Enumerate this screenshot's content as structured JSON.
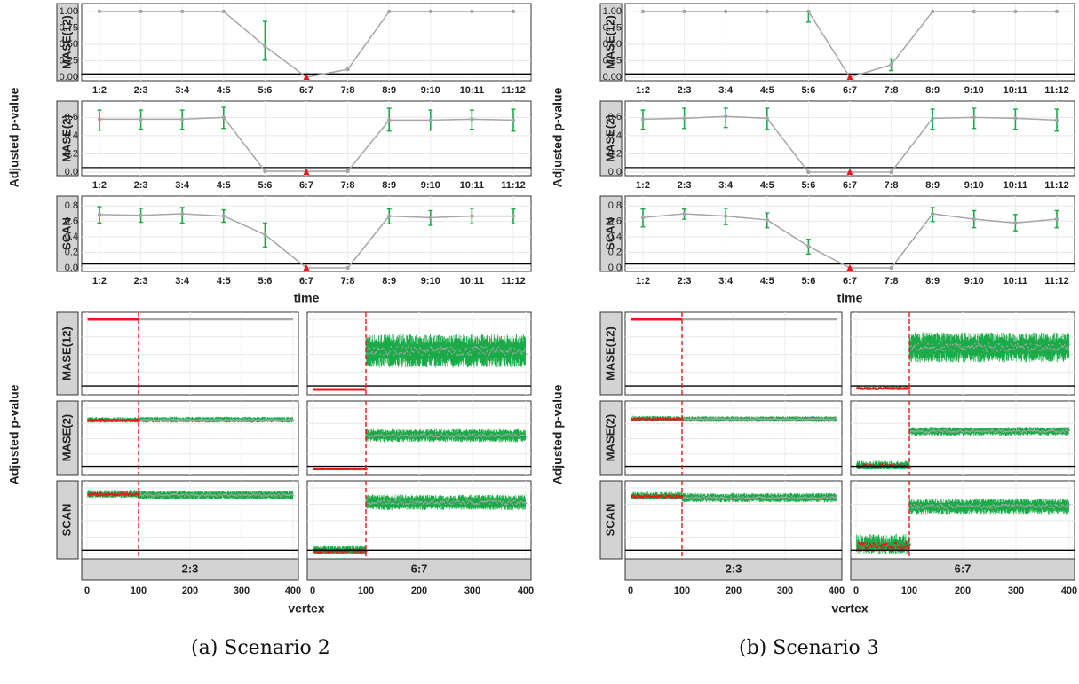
{
  "captions": {
    "a": "(a) Scenario 2",
    "b": "(b) Scenario 3"
  },
  "labels": {
    "ylabel": "Adjusted p-value",
    "xlabel_time": "time",
    "xlabel_vertex": "vertex",
    "method_strips": [
      "MASE(12)",
      "MASE(2)",
      "SCAN"
    ],
    "pair_strips": [
      "2:3",
      "6:7"
    ]
  },
  "colors": {
    "line": "#a6a6a6",
    "errorbar": "#1aab48",
    "marker": "#e8171a",
    "threshold": "#000000",
    "strip": "#d3d3d3"
  },
  "chart_data": [
    {
      "type": "line",
      "panel": "a-top",
      "xlabel": "time",
      "ylabel": "Adjusted p-value",
      "categories": [
        "1:2",
        "2:3",
        "3:4",
        "4:5",
        "5:6",
        "6:7",
        "7:8",
        "8:9",
        "9:10",
        "10:11",
        "11:12"
      ],
      "threshold": 0.05,
      "highlight_category": "6:7",
      "facets": [
        {
          "name": "MASE(12)",
          "yticks": [
            0,
            0.25,
            0.5,
            0.75,
            1
          ],
          "ylim": [
            0,
            1.04
          ],
          "values": [
            1,
            1,
            1,
            1,
            0.47,
            0,
            0.12,
            1,
            1,
            1,
            1
          ],
          "lo": [
            1,
            1,
            1,
            1,
            0.26,
            0,
            0.12,
            1,
            1,
            1,
            1
          ],
          "hi": [
            1,
            1,
            1,
            1,
            0.85,
            0,
            0.12,
            1,
            1,
            1,
            1
          ]
        },
        {
          "name": "MASE(2)",
          "yticks": [
            0,
            0.2,
            0.4,
            0.6
          ],
          "ylim": [
            0,
            0.72
          ],
          "values": [
            0.58,
            0.58,
            0.58,
            0.6,
            0.01,
            0.01,
            0.01,
            0.57,
            0.57,
            0.58,
            0.57
          ],
          "lo": [
            0.46,
            0.47,
            0.47,
            0.48,
            0.01,
            0.01,
            0.01,
            0.45,
            0.46,
            0.47,
            0.45
          ],
          "hi": [
            0.68,
            0.68,
            0.68,
            0.71,
            0.01,
            0.01,
            0.01,
            0.7,
            0.68,
            0.68,
            0.69
          ]
        },
        {
          "name": "SCAN",
          "yticks": [
            0,
            0.2,
            0.4,
            0.6,
            0.8
          ],
          "ylim": [
            0,
            0.86
          ],
          "values": [
            0.69,
            0.68,
            0.7,
            0.67,
            0.43,
            0.0,
            0.0,
            0.67,
            0.65,
            0.67,
            0.67
          ],
          "lo": [
            0.58,
            0.59,
            0.58,
            0.59,
            0.27,
            0.0,
            0.0,
            0.57,
            0.55,
            0.57,
            0.57
          ],
          "hi": [
            0.79,
            0.77,
            0.78,
            0.75,
            0.58,
            0.0,
            0.0,
            0.76,
            0.74,
            0.77,
            0.76
          ]
        }
      ]
    },
    {
      "type": "line",
      "panel": "b-top",
      "xlabel": "time",
      "ylabel": "Adjusted p-value",
      "categories": [
        "1:2",
        "2:3",
        "3:4",
        "4:5",
        "5:6",
        "6:7",
        "7:8",
        "8:9",
        "9:10",
        "10:11",
        "11:12"
      ],
      "threshold": 0.05,
      "highlight_category": "6:7",
      "facets": [
        {
          "name": "MASE(12)",
          "yticks": [
            0,
            0.25,
            0.5,
            0.75,
            1
          ],
          "ylim": [
            0,
            1.04
          ],
          "values": [
            1,
            1,
            1,
            1,
            1,
            0,
            0.19,
            1,
            1,
            1,
            1
          ],
          "lo": [
            1,
            1,
            1,
            1,
            0.84,
            0,
            0.1,
            1,
            1,
            1,
            1
          ],
          "hi": [
            1,
            1,
            1,
            1,
            1,
            0,
            0.28,
            1,
            1,
            1,
            1
          ]
        },
        {
          "name": "MASE(2)",
          "yticks": [
            0,
            0.2,
            0.4,
            0.6
          ],
          "ylim": [
            0,
            0.72
          ],
          "values": [
            0.58,
            0.59,
            0.61,
            0.59,
            0.0,
            0.0,
            0.0,
            0.59,
            0.6,
            0.59,
            0.57
          ],
          "lo": [
            0.47,
            0.48,
            0.49,
            0.47,
            0.0,
            0.0,
            0.0,
            0.47,
            0.48,
            0.47,
            0.45
          ],
          "hi": [
            0.68,
            0.7,
            0.7,
            0.7,
            0.0,
            0.0,
            0.0,
            0.69,
            0.7,
            0.69,
            0.69
          ]
        },
        {
          "name": "SCAN",
          "yticks": [
            0,
            0.2,
            0.4,
            0.6,
            0.8
          ],
          "ylim": [
            0,
            0.86
          ],
          "values": [
            0.65,
            0.7,
            0.67,
            0.62,
            0.28,
            0.0,
            0.0,
            0.7,
            0.63,
            0.58,
            0.63
          ],
          "lo": [
            0.53,
            0.63,
            0.56,
            0.52,
            0.18,
            0.0,
            0.0,
            0.6,
            0.52,
            0.48,
            0.52
          ],
          "hi": [
            0.76,
            0.76,
            0.77,
            0.71,
            0.37,
            0.0,
            0.0,
            0.78,
            0.74,
            0.69,
            0.74
          ]
        }
      ]
    },
    {
      "type": "scatter",
      "panel": "a-bottom",
      "xlabel": "vertex",
      "ylabel": "Adjusted p-value",
      "xlim": [
        0,
        400
      ],
      "xticks": [
        0,
        100,
        200,
        300,
        400
      ],
      "ylim": [
        0,
        1.0
      ],
      "yticks": [
        0,
        0.25,
        0.5,
        0.75,
        1
      ],
      "threshold": 0.05,
      "changed_vertices": [
        1,
        100
      ],
      "facets": [
        {
          "row": "MASE(12)",
          "col": "2:3",
          "before": {
            "mean": 1.0,
            "spread": 0.0
          },
          "after": {
            "mean": 1.0,
            "spread": 0.0
          }
        },
        {
          "row": "MASE(12)",
          "col": "6:7",
          "before": {
            "mean": 0.0,
            "spread": 0.0
          },
          "after": {
            "mean": 0.55,
            "spread": 0.2
          }
        },
        {
          "row": "MASE(2)",
          "col": "2:3",
          "before": {
            "mean": 0.8,
            "spread": 0.03
          },
          "after": {
            "mean": 0.81,
            "spread": 0.04
          }
        },
        {
          "row": "MASE(2)",
          "col": "6:7",
          "before": {
            "mean": 0.0,
            "spread": 0.01
          },
          "after": {
            "mean": 0.55,
            "spread": 0.09
          }
        },
        {
          "row": "SCAN",
          "col": "2:3",
          "before": {
            "mean": 0.9,
            "spread": 0.04
          },
          "after": {
            "mean": 0.89,
            "spread": 0.06
          }
        },
        {
          "row": "SCAN",
          "col": "6:7",
          "before": {
            "mean": 0.04,
            "spread": 0.05
          },
          "after": {
            "mean": 0.78,
            "spread": 0.1
          }
        }
      ]
    },
    {
      "type": "scatter",
      "panel": "b-bottom",
      "xlabel": "vertex",
      "ylabel": "Adjusted p-value",
      "xlim": [
        0,
        400
      ],
      "xticks": [
        0,
        100,
        200,
        300,
        400
      ],
      "ylim": [
        0,
        1.0
      ],
      "yticks": [
        0,
        0.25,
        0.5,
        0.75,
        1
      ],
      "threshold": 0.05,
      "changed_vertices": [
        1,
        100
      ],
      "facets": [
        {
          "row": "MASE(12)",
          "col": "2:3",
          "before": {
            "mean": 1.0,
            "spread": 0.0
          },
          "after": {
            "mean": 1.0,
            "spread": 0.0
          }
        },
        {
          "row": "MASE(12)",
          "col": "6:7",
          "before": {
            "mean": 0.01,
            "spread": 0.02
          },
          "after": {
            "mean": 0.6,
            "spread": 0.18
          }
        },
        {
          "row": "MASE(2)",
          "col": "2:3",
          "before": {
            "mean": 0.82,
            "spread": 0.03
          },
          "after": {
            "mean": 0.82,
            "spread": 0.04
          }
        },
        {
          "row": "MASE(2)",
          "col": "6:7",
          "before": {
            "mean": 0.05,
            "spread": 0.05
          },
          "after": {
            "mean": 0.62,
            "spread": 0.06
          }
        },
        {
          "row": "SCAN",
          "col": "2:3",
          "before": {
            "mean": 0.87,
            "spread": 0.04
          },
          "after": {
            "mean": 0.85,
            "spread": 0.06
          }
        },
        {
          "row": "SCAN",
          "col": "6:7",
          "before": {
            "mean": 0.12,
            "spread": 0.1
          },
          "after": {
            "mean": 0.72,
            "spread": 0.1
          }
        }
      ]
    }
  ]
}
